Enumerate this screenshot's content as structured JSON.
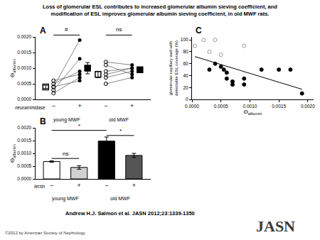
{
  "title_lines": [
    "Loss of glomerular ESL contributes to increased glomerular albumin sieving coefficient, and",
    "modification of ESL improves glomerular albumin sieving coefficient, in old MWF rats."
  ],
  "citation": "Andrew H.J. Salmon et al. JASN 2012;23:1339-1350",
  "copyright": "©2012 by American Society of Nephrology",
  "logo": "JASN",
  "chart_data": [
    {
      "panel_label": "A",
      "type": "paired_scatter",
      "y_label": "Θ",
      "y_label_subscript": "albumin",
      "x_label": "neuraminidase",
      "categories": [
        "−",
        "+",
        "−",
        "+"
      ],
      "color": "#000000",
      "groups": [
        {
          "name": "young MWF",
          "positions": [
            0,
            1
          ],
          "significance": "#",
          "before": [
            0.0002,
            0.0003,
            0.0004,
            0.0004,
            0.0005,
            0.0006
          ],
          "after": [
            0.0007,
            0.0013,
            0.0019,
            0.0006,
            0.0009,
            0.0008
          ],
          "before_marker": "circle-open",
          "after_marker": "circle",
          "mean": [
            0.0004,
            0.001
          ],
          "error": [
            5e-05,
            0.00018
          ],
          "mean_markers": [
            "square-open",
            "square"
          ]
        },
        {
          "name": "old MWF",
          "positions": [
            2,
            3
          ],
          "significance": "ns",
          "before": [
            0.0005,
            0.0007,
            0.0008,
            0.0009,
            0.0011,
            0.0012
          ],
          "after": [
            0.0007,
            0.0009,
            0.001,
            0.001,
            0.0008,
            0.0011
          ],
          "before_marker": "circle-open",
          "after_marker": "circle",
          "mean": [
            0.0008,
            0.00095
          ],
          "error": [
            0.0001,
            8e-05
          ],
          "mean_markers": [
            "square-open",
            "square"
          ]
        }
      ],
      "ylim": [
        0,
        0.002
      ],
      "yticks": [
        {
          "value": 0,
          "label": "0.0000"
        },
        {
          "value": 0.0005,
          "label": "0.0005"
        },
        {
          "value": 0.001,
          "label": "0.0010"
        },
        {
          "value": 0.0015,
          "label": "0.0015"
        },
        {
          "value": 0.002,
          "label": "0.0020"
        }
      ]
    },
    {
      "panel_label": "B",
      "type": "bar",
      "y_label": "Θ",
      "y_label_subscript": "albumin",
      "x_label": "lectin",
      "categories": [
        "−",
        "+",
        "−",
        "+"
      ],
      "groups": [
        {
          "name": "young MWF",
          "positions": [
            0,
            1
          ]
        },
        {
          "name": "old MWF",
          "positions": [
            2,
            3
          ]
        }
      ],
      "values": [
        0.00068,
        0.00045,
        0.00148,
        0.00092
      ],
      "error": [
        3e-05,
        7e-05,
        0.00016,
        8e-05
      ],
      "colors": [
        "#ffffff",
        "#d0d0d0",
        "#000000",
        "#555555"
      ],
      "comparisons": [
        {
          "from": 0,
          "to": 1,
          "y": 0.0008,
          "label": "ns"
        },
        {
          "from": 0,
          "to": 2,
          "y": 0.0019,
          "label": "*"
        },
        {
          "from": 2,
          "to": 3,
          "y": 0.0017,
          "label": "*"
        }
      ],
      "ylim": [
        0,
        0.002
      ],
      "yticks": [
        {
          "value": 0,
          "label": "0.0000"
        },
        {
          "value": 0.0005,
          "label": "0.0005"
        },
        {
          "value": 0.001,
          "label": "0.0010"
        },
        {
          "value": 0.0015,
          "label": "0.0015"
        },
        {
          "value": 0.002,
          "label": "0.0020"
        }
      ]
    },
    {
      "panel_label": "C",
      "type": "scatter",
      "x_label": "Θ",
      "x_label_subscript": "albumin",
      "y_label_lines": [
        "glomerular capillary wall with",
        "detectable ESL coverage (%)"
      ],
      "series": [
        {
          "color": "#999999",
          "marker": "circle-open",
          "x": [
            5e-05,
            0.0002,
            0.0003,
            0.0004,
            0.0005,
            0.0009
          ],
          "y": [
            90,
            100,
            80,
            100,
            75,
            90
          ]
        },
        {
          "color": "#000000",
          "marker": "circle",
          "x": [
            0.0003,
            0.0004,
            0.0005,
            0.00055,
            0.0006,
            0.0006,
            0.0007,
            0.0007,
            0.0009,
            0.0009,
            0.0012,
            0.0015,
            0.0017,
            0.0019
          ],
          "y": [
            50,
            60,
            55,
            50,
            45,
            35,
            25,
            30,
            35,
            25,
            50,
            50,
            50,
            10
          ]
        }
      ],
      "trend": {
        "x": [
          5e-05,
          0.0019
        ],
        "y": [
          72,
          17
        ]
      },
      "xlim": [
        0,
        0.0021
      ],
      "xticks": [
        {
          "value": 0,
          "label": "0.0000"
        },
        {
          "value": 0.0005,
          "label": "0.0005"
        },
        {
          "value": 0.001,
          "label": "0.0010"
        },
        {
          "value": 0.0015,
          "label": "0.0015"
        },
        {
          "value": 0.002,
          "label": "0.0020"
        }
      ],
      "ylim": [
        0,
        105
      ],
      "yticks": [
        0,
        20,
        40,
        60,
        80,
        100
      ]
    }
  ]
}
